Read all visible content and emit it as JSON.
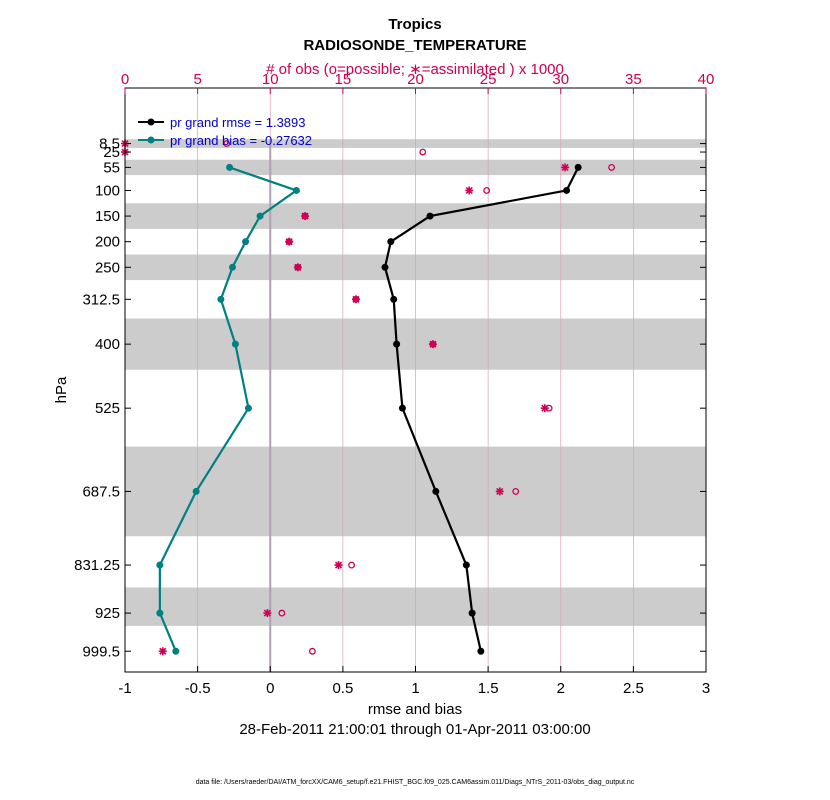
{
  "chart_data": {
    "type": "line",
    "title": "Tropics",
    "subtitle": "RADIOSONDE_TEMPERATURE",
    "top_axis_label": "# of obs (o=possible; ∗=assimilated ) x 1000",
    "xlabel": "rmse and bias",
    "ylabel": "hPa",
    "date_range": "28-Feb-2011 21:00:01 through 01-Apr-2011 03:00:00",
    "footnote": "data file: /Users/raeder/DAI/ATM_forcXX/CAM6_setup/f.e21.FHIST_BGC.f09_025.CAM6assim.011/Diags_NTrS_2011-03/obs_diag_output.nc",
    "xlim": [
      -1,
      3
    ],
    "x_ticks": [
      -1,
      -0.5,
      0,
      0.5,
      1,
      1.5,
      2,
      2.5,
      3
    ],
    "x_tick_labels": [
      "-1",
      "-0.5",
      "0",
      "0.5",
      "1",
      "1.5",
      "2",
      "2.5",
      "3"
    ],
    "top_xlim": [
      0,
      40
    ],
    "top_ticks": [
      0,
      5,
      10,
      15,
      20,
      25,
      30,
      35,
      40
    ],
    "top_tick_labels": [
      "0",
      "5",
      "10",
      "15",
      "20",
      "25",
      "30",
      "35",
      "40"
    ],
    "y_levels": [
      8.5,
      25,
      55,
      100,
      150,
      200,
      250,
      312.5,
      400,
      525,
      687.5,
      831.25,
      925,
      999.5
    ],
    "y_tick_labels": [
      "8.5",
      "25",
      "55",
      "100",
      "150",
      "200",
      "250",
      "312.5",
      "400",
      "525",
      "687.5",
      "831.25",
      "925",
      "999.5"
    ],
    "y_scale": "linear, inverted",
    "ylim": [
      -100,
      1040
    ],
    "shaded_bands": [
      [
        0,
        17
      ],
      [
        40,
        70
      ],
      [
        125,
        175
      ],
      [
        225,
        275
      ],
      [
        350,
        450
      ],
      [
        600,
        775
      ],
      [
        875,
        950
      ]
    ],
    "legend_position": "top-left",
    "series": [
      {
        "name": "pr grand rmse = 1.3893",
        "color": "#000000",
        "levels": [
          55,
          100,
          150,
          200,
          250,
          312.5,
          400,
          525,
          687.5,
          831.25,
          925,
          999.5
        ],
        "values": [
          2.12,
          2.04,
          1.1,
          0.83,
          0.79,
          0.85,
          0.87,
          0.91,
          1.14,
          1.35,
          1.39,
          1.45
        ]
      },
      {
        "name": "pr grand bias = -0.27632",
        "color": "#008080",
        "levels": [
          55,
          100,
          150,
          200,
          250,
          312.5,
          400,
          525,
          687.5,
          831.25,
          925,
          999.5
        ],
        "values": [
          -0.28,
          0.18,
          -0.07,
          -0.17,
          -0.26,
          -0.34,
          -0.24,
          -0.15,
          -0.51,
          -0.76,
          -0.76,
          -0.65
        ]
      }
    ],
    "obs_counts": {
      "color": "#cc0055",
      "levels": [
        8.5,
        25,
        55,
        100,
        150,
        200,
        250,
        312.5,
        400,
        525,
        687.5,
        831.25,
        925,
        999.5
      ],
      "possible": [
        7,
        20.5,
        33.5,
        24.9,
        12.4,
        11.3,
        11.9,
        15.9,
        21.2,
        29.2,
        26.9,
        15.6,
        10.8,
        12.9
      ],
      "assimilated": [
        0,
        0,
        30.3,
        23.7,
        12.4,
        11.3,
        11.9,
        15.9,
        21.2,
        28.9,
        25.8,
        14.7,
        9.8,
        2.6
      ]
    },
    "grid": "vertical lines at top-axis ticks"
  },
  "colors": {
    "rmse": "#000000",
    "bias": "#008080",
    "obs": "#cc0055",
    "legend_text": "#0000cc",
    "band": "#cccccc"
  }
}
